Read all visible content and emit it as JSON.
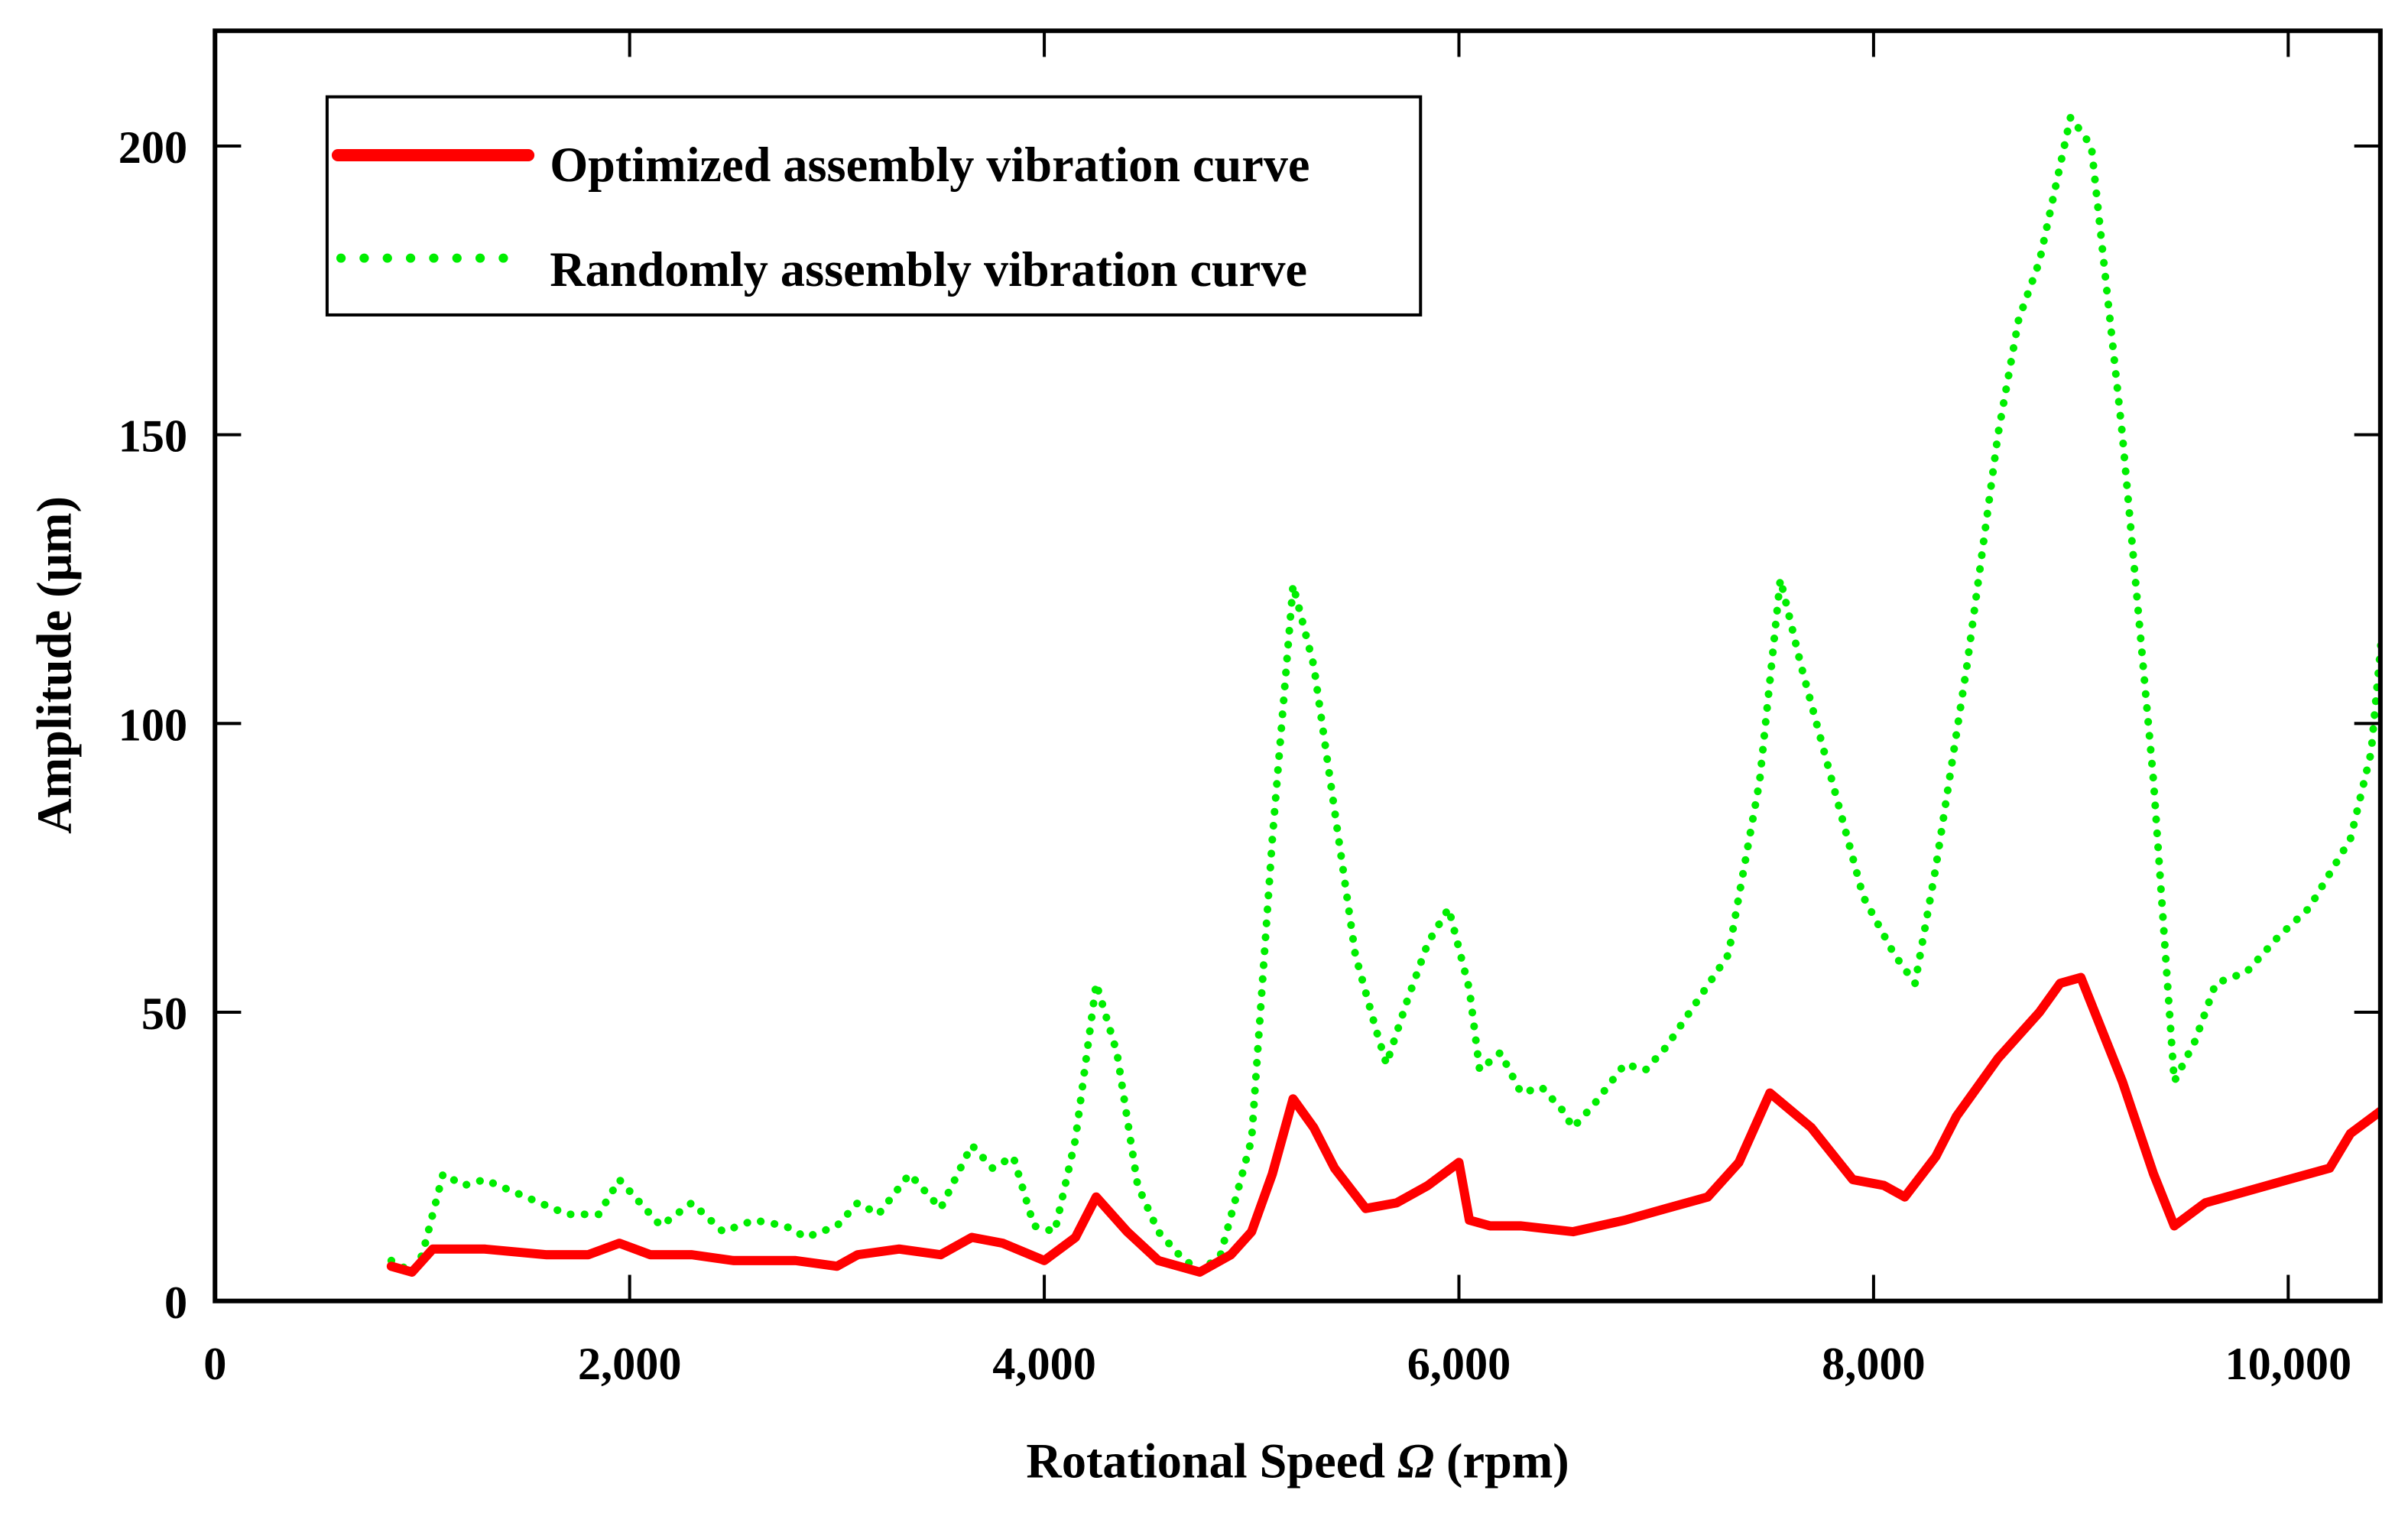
{
  "chart_data": {
    "type": "line",
    "title": "",
    "xlabel": "Rotational Speed Ω (rpm)",
    "xlabel_parts": {
      "prefix": "Rotational Speed ",
      "symbol": "Ω",
      "suffix": " (rpm)"
    },
    "ylabel": "Amplitude (μm)",
    "xlim": [
      0,
      10450
    ],
    "ylim": [
      0,
      220
    ],
    "xticks": [
      0,
      2000,
      4000,
      6000,
      8000,
      10000
    ],
    "xtick_labels": [
      "0",
      "2,000",
      "4,000",
      "6,000",
      "8,000",
      "10,000"
    ],
    "yticks": [
      0,
      50,
      100,
      150,
      200
    ],
    "ytick_labels": [
      "0",
      "50",
      "100",
      "150",
      "200"
    ],
    "grid": false,
    "legend_position": "top-left",
    "series": [
      {
        "name": "Optimized assembly vibration curve",
        "color": "#ff0000",
        "style": "solid",
        "x": [
          850,
          950,
          1050,
          1300,
          1600,
          1800,
          1950,
          2100,
          2300,
          2500,
          2800,
          3000,
          3100,
          3300,
          3500,
          3650,
          3800,
          4000,
          4150,
          4250,
          4400,
          4550,
          4750,
          4900,
          5000,
          5100,
          5200,
          5300,
          5400,
          5550,
          5700,
          5850,
          6000,
          6050,
          6150,
          6300,
          6550,
          6800,
          7000,
          7200,
          7350,
          7500,
          7700,
          7900,
          8050,
          8150,
          8300,
          8400,
          8600,
          8800,
          8900,
          9000,
          9200,
          9350,
          9450,
          9600,
          9800,
          10000,
          10200,
          10300,
          10450
        ],
        "y": [
          6,
          5,
          9,
          9,
          8,
          8,
          10,
          8,
          8,
          7,
          7,
          6,
          8,
          9,
          8,
          11,
          10,
          7,
          11,
          18,
          12,
          7,
          5,
          8,
          12,
          22,
          35,
          30,
          23,
          16,
          17,
          20,
          24,
          14,
          13,
          13,
          12,
          14,
          16,
          18,
          24,
          36,
          30,
          21,
          20,
          18,
          25,
          32,
          42,
          50,
          55,
          56,
          38,
          22,
          13,
          17,
          19,
          21,
          23,
          29,
          33
        ]
      },
      {
        "name": "Randomly assembly vibration curve",
        "color": "#00ee00",
        "style": "dotted",
        "x": [
          850,
          950,
          1000,
          1100,
          1200,
          1300,
          1500,
          1700,
          1850,
          1950,
          2050,
          2150,
          2300,
          2450,
          2600,
          2750,
          2850,
          3000,
          3100,
          3200,
          3350,
          3500,
          3650,
          3750,
          3850,
          3950,
          4050,
          4150,
          4250,
          4350,
          4450,
          4550,
          4650,
          4750,
          4850,
          5000,
          5100,
          5200,
          5300,
          5400,
          5500,
          5600,
          5650,
          5750,
          5850,
          5950,
          6050,
          6100,
          6200,
          6300,
          6400,
          6500,
          6550,
          6650,
          6800,
          6900,
          7000,
          7150,
          7300,
          7450,
          7550,
          7650,
          7800,
          7950,
          8100,
          8200,
          8300,
          8450,
          8600,
          8700,
          8800,
          8950,
          9050,
          9200,
          9350,
          9450,
          9550,
          9650,
          9800,
          9950,
          10100,
          10300,
          10400,
          10450
        ],
        "y": [
          7,
          5,
          8,
          22,
          20,
          21,
          18,
          15,
          15,
          21,
          17,
          13,
          17,
          12,
          14,
          13,
          11,
          13,
          17,
          15,
          22,
          16,
          27,
          23,
          25,
          13,
          12,
          28,
          55,
          43,
          20,
          12,
          8,
          5,
          8,
          28,
          80,
          124,
          110,
          85,
          60,
          47,
          41,
          52,
          62,
          68,
          54,
          40,
          43,
          36,
          37,
          33,
          30,
          34,
          41,
          40,
          44,
          52,
          60,
          90,
          125,
          110,
          90,
          70,
          60,
          55,
          75,
          110,
          150,
          170,
          180,
          205,
          200,
          150,
          90,
          38,
          45,
          55,
          57,
          63,
          68,
          80,
          95,
          115
        ]
      }
    ]
  }
}
